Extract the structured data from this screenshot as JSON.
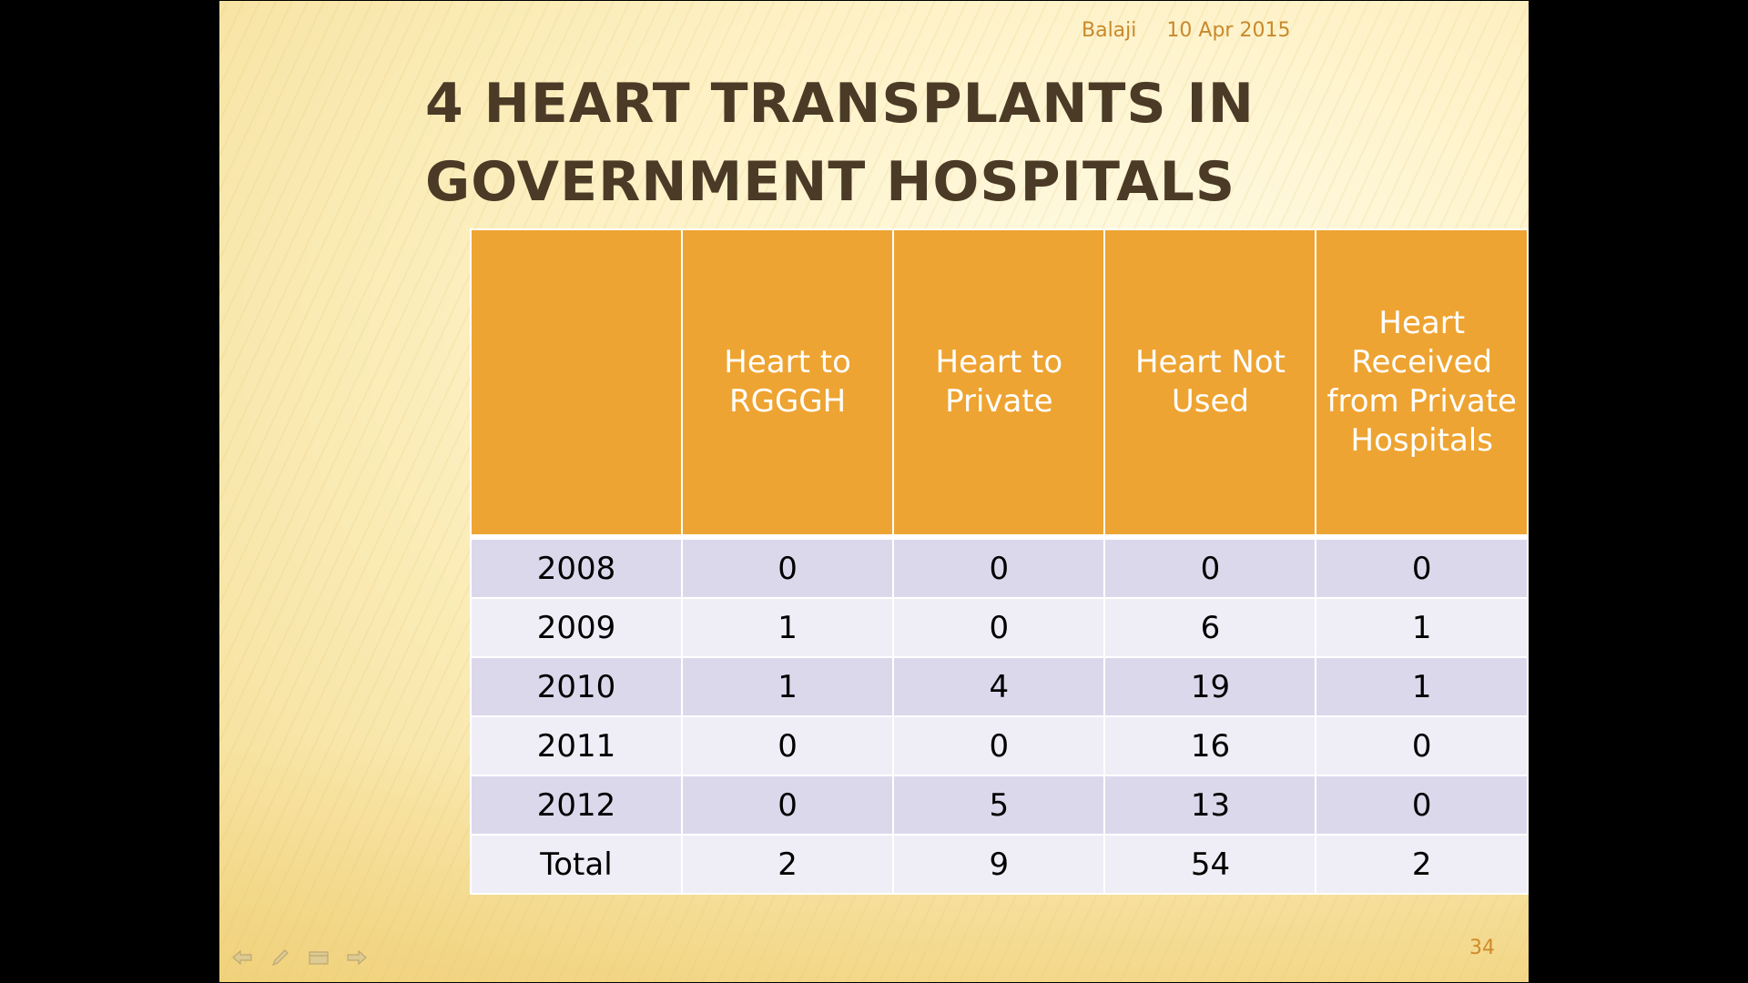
{
  "header": {
    "author": "Balaji",
    "date": "10 Apr 2015"
  },
  "title": {
    "line1": "4 HEART TRANSPLANTS IN",
    "line2": "GOVERNMENT HOSPITALS"
  },
  "table": {
    "columns": [
      "",
      "Heart to RGGGH",
      "Heart to Private",
      "Heart Not Used",
      "Heart Received from Private Hospitals"
    ],
    "rows": [
      [
        "2008",
        "0",
        "0",
        "0",
        "0"
      ],
      [
        "2009",
        "1",
        "0",
        "6",
        "1"
      ],
      [
        "2010",
        "1",
        "4",
        "19",
        "1"
      ],
      [
        "2011",
        "0",
        "0",
        "16",
        "0"
      ],
      [
        "2012",
        "0",
        "5",
        "13",
        "0"
      ],
      [
        "Total",
        "2",
        "9",
        "54",
        "2"
      ]
    ]
  },
  "footer": {
    "page_number": "34"
  },
  "nav": {
    "icons": [
      "arrow-left-icon",
      "pen-icon",
      "slide-menu-icon",
      "arrow-right-icon"
    ]
  },
  "colors": {
    "header_fill": "#eea432",
    "row_dark": "#dcd8ec",
    "row_light": "#efedf6",
    "title_text": "#4a3a26",
    "meta_text": "#c8892a"
  }
}
